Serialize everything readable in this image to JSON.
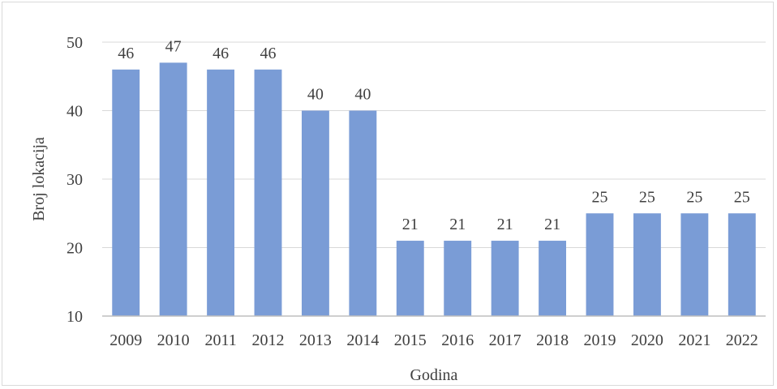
{
  "chart_data": {
    "type": "bar",
    "categories": [
      "2009",
      "2010",
      "2011",
      "2012",
      "2013",
      "2014",
      "2015",
      "2016",
      "2017",
      "2018",
      "2019",
      "2020",
      "2021",
      "2022"
    ],
    "values": [
      46,
      47,
      46,
      46,
      40,
      40,
      21,
      21,
      21,
      21,
      25,
      25,
      25,
      25
    ],
    "data_labels": [
      "46",
      "47",
      "46",
      "46",
      "40",
      "40",
      "21",
      "21",
      "21",
      "21",
      "25",
      "25",
      "25",
      "25"
    ],
    "title": "",
    "xlabel": "Godina",
    "ylabel": "Broj lokacija",
    "ylim": [
      10,
      50
    ],
    "yticks": [
      "10",
      "20",
      "30",
      "40",
      "50"
    ],
    "grid": true,
    "legend": "none",
    "colors": {
      "bar": "#7a9cd6",
      "grid": "#d9d9d9",
      "axis": "#bfbfbf",
      "text": "#404040"
    }
  }
}
